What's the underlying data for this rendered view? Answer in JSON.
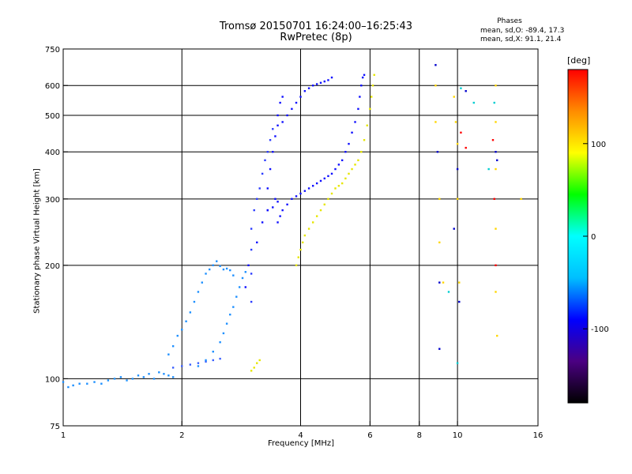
{
  "chart_data": {
    "type": "scatter",
    "title": "Tromsø 20150701 16:24:00–16:25:43",
    "subtitle": "RwPretec (8p)",
    "phases": {
      "heading": "Phases",
      "o_line": "mean, sd,O:  -89.4, 17.3",
      "x_line": "mean, sd,X:  91.1, 21.4"
    },
    "xlabel": "Frequency [MHz]",
    "ylabel": "Stationary phase Virtual Height [km]",
    "x_scale": "log",
    "y_scale": "log",
    "xlim": [
      1,
      16
    ],
    "ylim": [
      75,
      750
    ],
    "x_ticks": [
      1,
      2,
      4,
      6,
      8,
      10,
      16
    ],
    "y_ticks": [
      75,
      100,
      200,
      300,
      400,
      500,
      600,
      750
    ],
    "x_grid": [
      2,
      4,
      6,
      8,
      10
    ],
    "y_grid": [
      100,
      200,
      300,
      400,
      500,
      600
    ],
    "grid": true,
    "colorbar": {
      "unit": "[deg]",
      "range": [
        -180,
        180
      ],
      "ticks": [
        100,
        0,
        -100
      ],
      "colors": [
        "#000000",
        "#4b0082",
        "#0000ff",
        "#00bfff",
        "#00ffff",
        "#00ff00",
        "#ffff00",
        "#ff8c00",
        "#ff0000"
      ]
    },
    "series": [
      {
        "color": "#1e90ff",
        "points": [
          [
            1.0,
            98
          ],
          [
            1.03,
            95
          ],
          [
            1.06,
            96
          ],
          [
            1.1,
            97
          ],
          [
            1.15,
            97
          ],
          [
            1.2,
            98
          ],
          [
            1.25,
            97
          ],
          [
            1.3,
            99
          ],
          [
            1.35,
            100
          ],
          [
            1.4,
            101
          ],
          [
            1.45,
            99
          ],
          [
            1.5,
            100
          ],
          [
            1.55,
            102
          ],
          [
            1.6,
            101
          ],
          [
            1.65,
            103
          ],
          [
            1.7,
            100
          ],
          [
            1.75,
            104
          ],
          [
            1.8,
            103
          ],
          [
            1.85,
            102
          ],
          [
            1.9,
            101
          ]
        ]
      },
      {
        "color": "#3a5fff",
        "points": [
          [
            1.9,
            107
          ],
          [
            2.0,
            108
          ],
          [
            2.1,
            109
          ],
          [
            2.2,
            110
          ],
          [
            2.3,
            111
          ],
          [
            2.4,
            112
          ],
          [
            2.5,
            113
          ]
        ]
      },
      {
        "color": "#1e90ff",
        "points": [
          [
            1.85,
            116
          ],
          [
            1.9,
            122
          ],
          [
            1.95,
            130
          ],
          [
            2.0,
            135
          ],
          [
            2.05,
            142
          ],
          [
            2.1,
            150
          ],
          [
            2.15,
            160
          ],
          [
            2.2,
            170
          ],
          [
            2.25,
            180
          ],
          [
            2.3,
            190
          ],
          [
            2.35,
            195
          ],
          [
            2.4,
            200
          ],
          [
            2.45,
            205
          ],
          [
            2.5,
            199
          ],
          [
            2.55,
            195
          ],
          [
            2.6,
            196
          ],
          [
            2.65,
            194
          ],
          [
            2.7,
            188
          ]
        ]
      },
      {
        "color": "#1e90ff",
        "points": [
          [
            2.2,
            108
          ],
          [
            2.3,
            112
          ],
          [
            2.4,
            118
          ],
          [
            2.5,
            125
          ],
          [
            2.55,
            132
          ],
          [
            2.6,
            140
          ],
          [
            2.65,
            148
          ],
          [
            2.7,
            155
          ],
          [
            2.75,
            165
          ],
          [
            2.8,
            175
          ],
          [
            2.85,
            185
          ],
          [
            2.9,
            192
          ]
        ]
      },
      {
        "color": "#2b3cff",
        "points": [
          [
            3.0,
            160
          ],
          [
            3.0,
            190
          ],
          [
            3.0,
            220
          ],
          [
            3.0,
            250
          ],
          [
            3.05,
            280
          ],
          [
            3.1,
            300
          ],
          [
            3.15,
            320
          ],
          [
            3.2,
            350
          ],
          [
            3.25,
            380
          ],
          [
            3.3,
            400
          ],
          [
            3.35,
            430
          ],
          [
            3.4,
            460
          ]
        ]
      },
      {
        "color": "#1010ff",
        "points": [
          [
            2.9,
            175
          ],
          [
            2.95,
            200
          ],
          [
            3.1,
            230
          ],
          [
            3.2,
            260
          ],
          [
            3.3,
            280
          ],
          [
            3.4,
            285
          ],
          [
            3.45,
            300
          ],
          [
            3.5,
            295
          ]
        ]
      },
      {
        "color": "#1010ff",
        "points": [
          [
            3.5,
            260
          ],
          [
            3.55,
            270
          ],
          [
            3.6,
            280
          ],
          [
            3.7,
            290
          ],
          [
            3.8,
            300
          ],
          [
            3.9,
            305
          ],
          [
            4.0,
            310
          ],
          [
            4.1,
            315
          ],
          [
            4.2,
            320
          ],
          [
            4.3,
            325
          ],
          [
            4.4,
            330
          ],
          [
            4.5,
            335
          ],
          [
            4.6,
            340
          ],
          [
            4.7,
            345
          ],
          [
            4.8,
            350
          ],
          [
            4.9,
            360
          ],
          [
            5.0,
            370
          ],
          [
            5.1,
            380
          ],
          [
            5.2,
            400
          ],
          [
            5.3,
            420
          ],
          [
            5.4,
            450
          ],
          [
            5.5,
            480
          ],
          [
            5.6,
            520
          ],
          [
            5.65,
            560
          ],
          [
            5.7,
            600
          ],
          [
            5.75,
            630
          ],
          [
            5.8,
            640
          ]
        ]
      },
      {
        "color": "#1010ff",
        "points": [
          [
            3.5,
            470
          ],
          [
            3.6,
            480
          ],
          [
            3.7,
            500
          ],
          [
            3.8,
            520
          ],
          [
            3.9,
            540
          ],
          [
            4.0,
            560
          ],
          [
            4.1,
            580
          ],
          [
            4.2,
            590
          ],
          [
            4.3,
            600
          ],
          [
            4.4,
            605
          ],
          [
            4.5,
            610
          ],
          [
            4.6,
            615
          ],
          [
            4.7,
            620
          ],
          [
            4.8,
            630
          ]
        ]
      },
      {
        "color": "#1010ff",
        "points": [
          [
            3.3,
            280
          ],
          [
            3.3,
            320
          ],
          [
            3.35,
            360
          ],
          [
            3.4,
            400
          ],
          [
            3.45,
            440
          ],
          [
            3.5,
            500
          ],
          [
            3.55,
            540
          ],
          [
            3.6,
            560
          ]
        ]
      },
      {
        "color": "#e6e600",
        "points": [
          [
            3.9,
            200
          ],
          [
            3.95,
            210
          ],
          [
            4.0,
            220
          ],
          [
            4.05,
            230
          ],
          [
            4.1,
            240
          ],
          [
            4.2,
            250
          ],
          [
            4.3,
            260
          ],
          [
            4.4,
            270
          ],
          [
            4.5,
            280
          ],
          [
            4.6,
            290
          ],
          [
            4.7,
            300
          ],
          [
            4.8,
            310
          ],
          [
            4.9,
            320
          ],
          [
            5.0,
            325
          ],
          [
            5.1,
            330
          ],
          [
            5.2,
            340
          ],
          [
            5.3,
            350
          ],
          [
            5.4,
            360
          ],
          [
            5.5,
            370
          ],
          [
            5.6,
            380
          ],
          [
            5.7,
            400
          ],
          [
            5.8,
            430
          ],
          [
            5.9,
            470
          ],
          [
            6.0,
            520
          ],
          [
            6.05,
            560
          ],
          [
            6.1,
            600
          ],
          [
            6.15,
            640
          ]
        ]
      },
      {
        "color": "#e6e600",
        "points": [
          [
            3.0,
            105
          ],
          [
            3.05,
            107
          ],
          [
            3.1,
            110
          ],
          [
            3.15,
            112
          ]
        ]
      },
      {
        "color": "#ffd700",
        "points": [
          [
            8.8,
            600
          ],
          [
            8.8,
            480
          ],
          [
            9.0,
            300
          ],
          [
            9.0,
            230
          ],
          [
            9.2,
            180
          ],
          [
            9.8,
            560
          ],
          [
            9.9,
            480
          ],
          [
            10.0,
            420
          ],
          [
            10.0,
            300
          ],
          [
            10.1,
            180
          ],
          [
            12.5,
            600
          ],
          [
            12.5,
            480
          ],
          [
            12.5,
            360
          ],
          [
            12.5,
            250
          ],
          [
            12.5,
            170
          ],
          [
            12.6,
            130
          ],
          [
            14.5,
            300
          ]
        ]
      },
      {
        "color": "#0000cd",
        "points": [
          [
            8.8,
            680
          ],
          [
            8.9,
            400
          ],
          [
            9.0,
            180
          ],
          [
            9.0,
            120
          ],
          [
            9.8,
            250
          ],
          [
            10.0,
            360
          ],
          [
            10.1,
            160
          ],
          [
            10.5,
            580
          ],
          [
            12.5,
            400
          ],
          [
            12.6,
            380
          ]
        ]
      },
      {
        "color": "#00ced1",
        "points": [
          [
            9.5,
            170
          ],
          [
            10.0,
            110
          ],
          [
            10.2,
            590
          ],
          [
            11.0,
            540
          ],
          [
            12.0,
            360
          ],
          [
            12.4,
            540
          ]
        ]
      },
      {
        "color": "#ff0000",
        "points": [
          [
            10.2,
            450
          ],
          [
            10.5,
            410
          ],
          [
            12.3,
            430
          ],
          [
            12.4,
            300
          ],
          [
            12.5,
            200
          ]
        ]
      }
    ]
  }
}
